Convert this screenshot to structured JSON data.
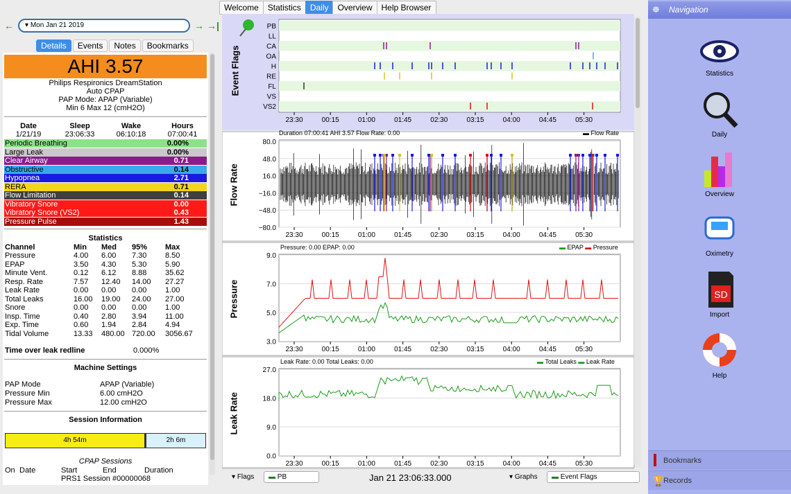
{
  "date_bar": {
    "date": "Mon Jan 21 2019"
  },
  "left_tabs": [
    "Details",
    "Events",
    "Notes",
    "Bookmarks"
  ],
  "ahi": "AHI 3.57",
  "device": {
    "name": "Philips Respironics DreamStation",
    "model": "Auto CPAP",
    "mode": "PAP Mode: APAP (Variable)",
    "range": "Min 6 Max 12 (cmH2O)"
  },
  "summary": {
    "headers": [
      "Date",
      "Sleep",
      "Wake",
      "Hours"
    ],
    "values": [
      "1/21/19",
      "23:06:33",
      "06:10:18",
      "07:00:41"
    ]
  },
  "events": [
    {
      "label": "Periodic Breathing",
      "value": "0.00%",
      "bg": "#8ee18a",
      "fg": "#000"
    },
    {
      "label": "Large Leak",
      "value": "0.00%",
      "bg": "#c9c9c9",
      "fg": "#000"
    },
    {
      "label": "Clear Airway",
      "value": "0.71",
      "bg": "#8a1b8d",
      "fg": "#fff"
    },
    {
      "label": "Obstructive",
      "value": "0.14",
      "bg": "#3aa9e8",
      "fg": "#000"
    },
    {
      "label": "Hypopnea",
      "value": "2.71",
      "bg": "#1a1ae0",
      "fg": "#fff"
    },
    {
      "label": "RERA",
      "value": "0.71",
      "bg": "#f5d51c",
      "fg": "#000"
    },
    {
      "label": "Flow Limitation",
      "value": "0.14",
      "bg": "#3f3f3f",
      "fg": "#fff"
    },
    {
      "label": "Vibratory Snore",
      "value": "0.00",
      "bg": "#ff1a1a",
      "fg": "#fff"
    },
    {
      "label": "Vibratory Snore (VS2)",
      "value": "0.43",
      "bg": "#ff1a1a",
      "fg": "#fff"
    },
    {
      "label": "Pressure Pulse",
      "value": "1.43",
      "bg": "#a80d0d",
      "fg": "#fff"
    }
  ],
  "statistics": {
    "title": "Statistics",
    "headers": [
      "Channel",
      "Min",
      "Med",
      "95%",
      "Max"
    ],
    "rows": [
      [
        "Pressure",
        "4.00",
        "6.00",
        "7.30",
        "8.50"
      ],
      [
        "EPAP",
        "3.50",
        "4.30",
        "5.30",
        "5.90"
      ],
      [
        "Minute Vent.",
        "0.12",
        "6.12",
        "8.88",
        "35.62"
      ],
      [
        "Resp. Rate",
        "7.57",
        "12.40",
        "14.00",
        "27.27"
      ],
      [
        "Leak Rate",
        "0.00",
        "0.00",
        "0.00",
        "1.00"
      ],
      [
        "Total Leaks",
        "16.00",
        "19.00",
        "24.00",
        "27.00"
      ],
      [
        "Snore",
        "0.00",
        "0.00",
        "0.00",
        "1.00"
      ],
      [
        "Insp. Time",
        "0.40",
        "2.80",
        "3.94",
        "11.00"
      ],
      [
        "Exp. Time",
        "0.60",
        "1.94",
        "2.84",
        "4.94"
      ],
      [
        "Tidal Volume",
        "13.33",
        "480.00",
        "720.00",
        "3056.67"
      ]
    ]
  },
  "leak_redline": {
    "label": "Time over leak redline",
    "value": "0.000%"
  },
  "machine_settings": {
    "title": "Machine Settings",
    "rows": [
      [
        "PAP Mode",
        "APAP (Variable)"
      ],
      [
        "Pressure Min",
        "6.00 cmH2O"
      ],
      [
        "Pressure Max",
        "12.00 cmH2O"
      ]
    ]
  },
  "session_info": {
    "title": "Session Information",
    "bar1": "4h 54m",
    "bar2": "2h 6m",
    "cpap_title": "CPAP Sessions",
    "headers": [
      "On",
      "Date",
      "Start",
      "End",
      "Duration"
    ],
    "row": "PRS1 Session #00000068"
  },
  "top_tabs": [
    "Welcome",
    "Statistics",
    "Daily",
    "Overview",
    "Help Browser"
  ],
  "time_ticks": [
    "23:30",
    "00:15",
    "01:00",
    "01:45",
    "02:30",
    "03:15",
    "04:00",
    "04:45",
    "05:30"
  ],
  "event_flags": {
    "ylabel": "Event Flags",
    "rows": [
      "PB",
      "LL",
      "CA",
      "OA",
      "H",
      "RE",
      "FL",
      "VS",
      "VS2"
    ]
  },
  "flow": {
    "ylabel": "Flow Rate",
    "header": "Duration 07:00:41 AHI 3.57 Flow Rate: 0.00",
    "legend": "Flow Rate",
    "ticks": [
      "80.0",
      "48.0",
      "16.0",
      "−16.0",
      "−48.0",
      "−80.0"
    ]
  },
  "pressure": {
    "ylabel": "Pressure",
    "header": "Pressure: 0.00 EPAP: 0.00",
    "legend": [
      "EPAP",
      "Pressure"
    ],
    "ticks": [
      "9.0",
      "7.0",
      "5.0",
      "3.0"
    ]
  },
  "leak": {
    "ylabel": "Leak Rate",
    "header": "Leak Rate: 0.00 Total Leaks: 0.00",
    "legend": [
      "Total Leaks",
      "Leak Rate"
    ],
    "ticks": [
      "27.0",
      "18.0",
      "9.0",
      "0.0"
    ]
  },
  "bottom": {
    "flags_label": "Flags",
    "flags_value": "PB",
    "timestamp": "Jan 21 23:06:33.000",
    "graphs_label": "Graphs",
    "graphs_value": "Event Flags"
  },
  "nav": {
    "title": "Navigation",
    "items": [
      "Statistics",
      "Daily",
      "Overview",
      "Oximetry",
      "Import",
      "Help"
    ],
    "bookmarks": "Bookmarks",
    "records": "Records"
  },
  "colors": {
    "accent": "#3d8ee8",
    "pressure": "#e01010",
    "epap": "#1a9a1a",
    "leak": "#1a9a1a"
  }
}
